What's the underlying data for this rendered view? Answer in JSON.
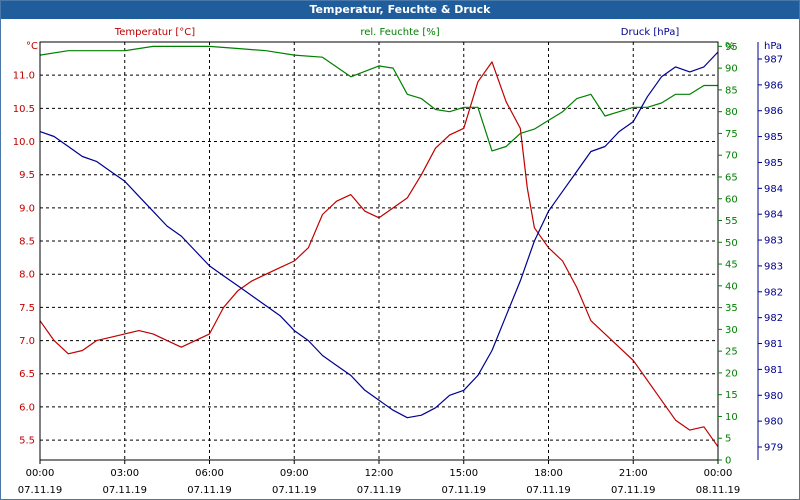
{
  "window": {
    "title": "Temperatur, Feuchte & Druck"
  },
  "chart_data": {
    "type": "line",
    "title": "Temperatur, Feuchte & Druck",
    "grid": true,
    "x_ticks": [
      {
        "time": "00:00",
        "date": "07.11.19"
      },
      {
        "time": "03:00",
        "date": "07.11.19"
      },
      {
        "time": "06:00",
        "date": "07.11.19"
      },
      {
        "time": "09:00",
        "date": "07.11.19"
      },
      {
        "time": "12:00",
        "date": "07.11.19"
      },
      {
        "time": "15:00",
        "date": "07.11.19"
      },
      {
        "time": "18:00",
        "date": "07.11.19"
      },
      {
        "time": "21:00",
        "date": "07.11.19"
      },
      {
        "time": "00:00",
        "date": "08.11.19"
      }
    ],
    "axes": {
      "temperature": {
        "label": "Temperatur [°C]",
        "unit": "°C",
        "color": "#c00000",
        "ylim": [
          5.2,
          11.5
        ],
        "ticks": [
          "11.0",
          "10.5",
          "10.0",
          "9.5",
          "9.0",
          "8.5",
          "8.0",
          "7.5",
          "7.0",
          "6.5",
          "6.0",
          "5.5"
        ]
      },
      "humidity": {
        "label": "rel. Feuchte [%]",
        "unit": "%",
        "color": "#008000",
        "ylim": [
          0,
          96
        ],
        "ticks": [
          "95",
          "90",
          "85",
          "80",
          "75",
          "70",
          "65",
          "60",
          "55",
          "50",
          "45",
          "40",
          "35",
          "30",
          "25",
          "20",
          "15",
          "10",
          "5",
          "0"
        ]
      },
      "pressure": {
        "label": "Druck [hPa]",
        "unit": "hPa",
        "color": "#000090",
        "ylim": [
          978.7,
          987.1
        ],
        "ticks": [
          "987",
          "986",
          "986",
          "985",
          "985",
          "984",
          "984",
          "983",
          "983",
          "982",
          "982",
          "981",
          "981",
          "980",
          "980",
          "979"
        ]
      }
    },
    "series": [
      {
        "name": "Temperatur [°C]",
        "axis": "temperature",
        "color": "#c00000",
        "x": [
          0,
          0.5,
          1,
          1.5,
          2,
          2.5,
          3,
          3.5,
          4,
          4.5,
          5,
          5.5,
          6,
          6.5,
          7,
          7.5,
          8,
          8.5,
          9,
          9.5,
          10,
          10.5,
          11,
          11.5,
          12,
          12.5,
          13,
          13.5,
          14,
          14.5,
          15,
          15.5,
          16,
          16.5,
          17,
          17.25,
          17.5,
          18,
          18.5,
          19,
          19.5,
          20,
          20.5,
          21,
          21.5,
          22,
          22.5,
          23,
          23.5,
          24
        ],
        "y": [
          7.3,
          7.0,
          6.8,
          6.85,
          7.0,
          7.05,
          7.1,
          7.15,
          7.1,
          7.0,
          6.9,
          7.0,
          7.1,
          7.5,
          7.75,
          7.9,
          8.0,
          8.1,
          8.2,
          8.4,
          8.9,
          9.1,
          9.2,
          8.95,
          8.85,
          9.0,
          9.15,
          9.5,
          9.9,
          10.1,
          10.2,
          10.9,
          11.2,
          10.6,
          10.2,
          9.3,
          8.7,
          8.4,
          8.2,
          7.8,
          7.3,
          7.1,
          6.9,
          6.7,
          6.4,
          6.1,
          5.8,
          5.65,
          5.7,
          5.4
        ],
        "note": "red curve"
      },
      {
        "name": "rel. Feuchte [%]",
        "axis": "humidity",
        "color": "#008000",
        "x": [
          0,
          1,
          2,
          3,
          4,
          5,
          6,
          7,
          8,
          9,
          10,
          11,
          12,
          12.5,
          13,
          13.5,
          14,
          14.5,
          15,
          15.5,
          16,
          16.5,
          17,
          17.5,
          18,
          18.5,
          19,
          19.5,
          20,
          20.5,
          21,
          21.5,
          22,
          22.5,
          23,
          23.5,
          24
        ],
        "y": [
          93,
          94,
          94,
          94,
          95,
          95,
          95,
          94.5,
          94,
          93,
          92.5,
          88,
          90.5,
          90,
          84,
          83,
          80.5,
          80,
          81,
          81,
          71,
          72,
          75,
          76,
          78,
          80,
          83,
          84,
          79,
          80,
          81,
          81,
          82,
          84,
          84,
          86,
          86
        ],
        "note": "green curve"
      },
      {
        "name": "Druck [hPa]",
        "axis": "pressure",
        "color": "#000090",
        "x": [
          0,
          0.5,
          1,
          1.5,
          2,
          2.5,
          3,
          3.5,
          4,
          4.5,
          5,
          5.5,
          6,
          6.5,
          7,
          7.5,
          8,
          8.5,
          9,
          9.5,
          10,
          10.5,
          11,
          11.5,
          12,
          12.5,
          13,
          13.5,
          14,
          14.5,
          15,
          15.5,
          16,
          16.5,
          17,
          17.5,
          18,
          18.5,
          19,
          19.5,
          20,
          20.5,
          21,
          21.5,
          22,
          22.5,
          23,
          23.5,
          24
        ],
        "y": [
          985.3,
          985.2,
          985.0,
          984.8,
          984.7,
          984.5,
          984.3,
          984.0,
          983.7,
          983.4,
          983.2,
          982.9,
          982.6,
          982.4,
          982.2,
          982.0,
          981.8,
          981.6,
          981.3,
          981.1,
          980.8,
          980.6,
          980.4,
          980.1,
          979.9,
          979.7,
          979.55,
          979.6,
          979.75,
          980.0,
          980.1,
          980.4,
          980.9,
          981.6,
          982.3,
          983.1,
          983.7,
          984.1,
          984.5,
          984.9,
          985.0,
          985.3,
          985.5,
          986.0,
          986.4,
          986.6,
          986.5,
          986.6,
          986.9
        ],
        "note": "blue curve"
      }
    ]
  }
}
